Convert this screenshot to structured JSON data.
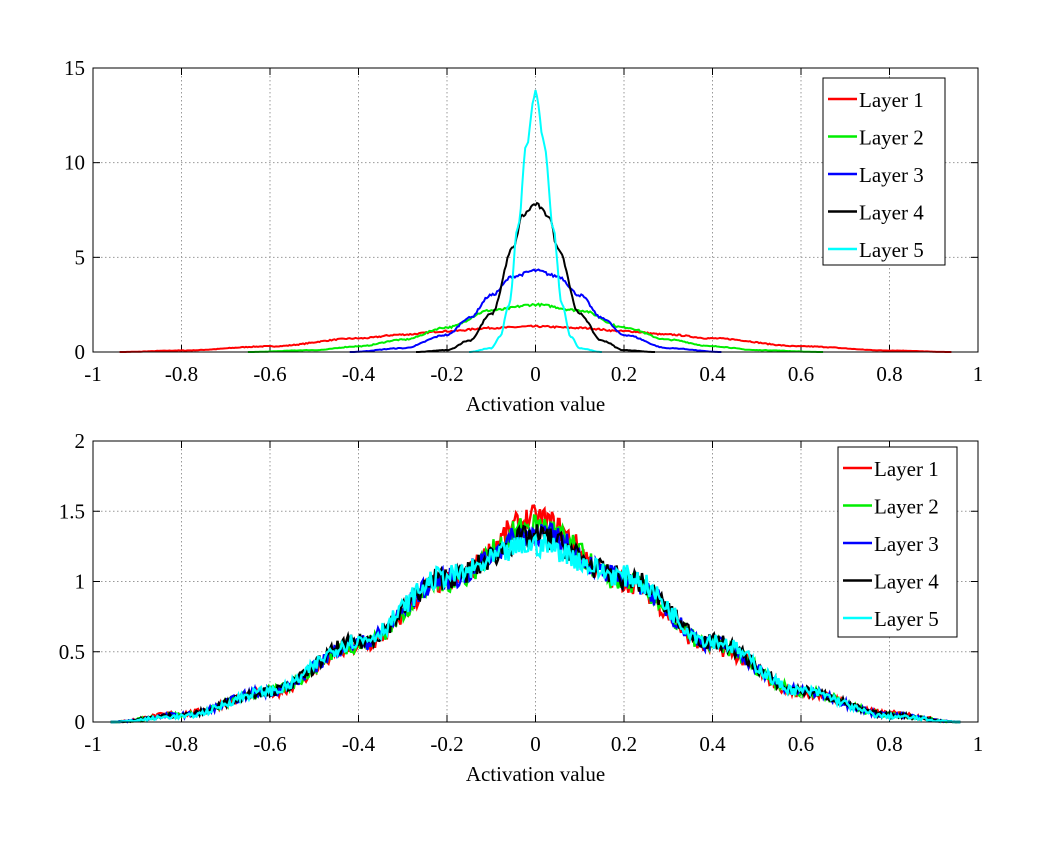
{
  "chart_data": [
    {
      "type": "line",
      "xlabel": "Activation value",
      "ylabel": "",
      "xlim": [
        -1,
        1
      ],
      "ylim": [
        0,
        15
      ],
      "xticks": [
        "-1",
        "-0.8",
        "-0.6",
        "-0.4",
        "-0.2",
        "0",
        "0.2",
        "0.4",
        "0.6",
        "0.8",
        "1"
      ],
      "yticks": [
        "0",
        "5",
        "10",
        "15"
      ],
      "grid": true,
      "legend": "top-right",
      "series": [
        {
          "name": "Layer 1",
          "color": "#ff0000",
          "x": [
            -0.94,
            -0.8,
            -0.6,
            -0.4,
            -0.3,
            -0.2,
            -0.1,
            0,
            0.1,
            0.2,
            0.3,
            0.4,
            0.6,
            0.8,
            0.94
          ],
          "y": [
            0,
            0.08,
            0.3,
            0.72,
            0.92,
            1.1,
            1.27,
            1.35,
            1.27,
            1.1,
            0.92,
            0.72,
            0.3,
            0.08,
            0
          ]
        },
        {
          "name": "Layer 2",
          "color": "#00ee00",
          "x": [
            -0.65,
            -0.5,
            -0.4,
            -0.3,
            -0.2,
            -0.1,
            0,
            0.1,
            0.2,
            0.3,
            0.4,
            0.5,
            0.65
          ],
          "y": [
            0,
            0.1,
            0.3,
            0.65,
            1.3,
            2.2,
            2.5,
            2.2,
            1.3,
            0.65,
            0.3,
            0.1,
            0
          ]
        },
        {
          "name": "Layer 3",
          "color": "#0000ff",
          "x": [
            -0.42,
            -0.3,
            -0.2,
            -0.15,
            -0.1,
            -0.05,
            0,
            0.05,
            0.1,
            0.15,
            0.2,
            0.3,
            0.42
          ],
          "y": [
            0,
            0.2,
            0.9,
            1.8,
            3.0,
            4.0,
            4.3,
            4.0,
            3.0,
            1.8,
            0.9,
            0.2,
            0
          ]
        },
        {
          "name": "Layer 4",
          "color": "#000000",
          "x": [
            -0.27,
            -0.2,
            -0.15,
            -0.1,
            -0.05,
            -0.03,
            0,
            0.03,
            0.05,
            0.1,
            0.15,
            0.2,
            0.27
          ],
          "y": [
            0,
            0.1,
            0.6,
            2.0,
            5.5,
            7.2,
            7.8,
            7.2,
            5.5,
            2.0,
            0.6,
            0.1,
            0
          ]
        },
        {
          "name": "Layer 5",
          "color": "#00ffff",
          "x": [
            -0.15,
            -0.1,
            -0.08,
            -0.06,
            -0.04,
            -0.02,
            0,
            0.02,
            0.04,
            0.06,
            0.08,
            0.1,
            0.15
          ],
          "y": [
            0,
            0.2,
            0.8,
            2.5,
            6.5,
            11,
            13.7,
            11,
            6.5,
            2.5,
            0.8,
            0.2,
            0
          ]
        }
      ]
    },
    {
      "type": "line",
      "xlabel": "Activation value",
      "ylabel": "",
      "xlim": [
        -1,
        1
      ],
      "ylim": [
        0,
        2
      ],
      "xticks": [
        "-1",
        "-0.8",
        "-0.6",
        "-0.4",
        "-0.2",
        "0",
        "0.2",
        "0.4",
        "0.6",
        "0.8",
        "1"
      ],
      "yticks": [
        "0",
        "0.5",
        "1",
        "1.5",
        "2"
      ],
      "grid": true,
      "legend": "top-right",
      "series": [
        {
          "name": "Layer 1",
          "color": "#ff0000",
          "x": [
            -0.96,
            -0.8,
            -0.6,
            -0.4,
            -0.2,
            0,
            0.2,
            0.4,
            0.6,
            0.8,
            0.96
          ],
          "y": [
            0,
            0.06,
            0.21,
            0.53,
            1.0,
            1.45,
            1.0,
            0.53,
            0.21,
            0.06,
            0
          ]
        },
        {
          "name": "Layer 2",
          "color": "#00ee00",
          "x": [
            -0.96,
            -0.8,
            -0.6,
            -0.4,
            -0.2,
            0,
            0.2,
            0.4,
            0.6,
            0.8,
            0.96
          ],
          "y": [
            0,
            0.05,
            0.22,
            0.55,
            1.0,
            1.4,
            1.0,
            0.55,
            0.22,
            0.05,
            0
          ]
        },
        {
          "name": "Layer 3",
          "color": "#0000ff",
          "x": [
            -0.96,
            -0.8,
            -0.6,
            -0.4,
            -0.2,
            0,
            0.2,
            0.4,
            0.6,
            0.8,
            0.96
          ],
          "y": [
            0,
            0.05,
            0.22,
            0.56,
            1.02,
            1.35,
            1.02,
            0.56,
            0.22,
            0.05,
            0
          ]
        },
        {
          "name": "Layer 4",
          "color": "#000000",
          "x": [
            -0.96,
            -0.8,
            -0.6,
            -0.4,
            -0.2,
            0,
            0.2,
            0.4,
            0.6,
            0.8,
            0.96
          ],
          "y": [
            0,
            0.05,
            0.22,
            0.57,
            1.03,
            1.32,
            1.03,
            0.57,
            0.22,
            0.05,
            0
          ]
        },
        {
          "name": "Layer 5",
          "color": "#00ffff",
          "x": [
            -0.96,
            -0.8,
            -0.6,
            -0.4,
            -0.2,
            0,
            0.2,
            0.4,
            0.6,
            0.8,
            0.96
          ],
          "y": [
            0,
            0.04,
            0.22,
            0.58,
            1.04,
            1.26,
            1.04,
            0.58,
            0.22,
            0.04,
            0
          ]
        }
      ]
    }
  ]
}
